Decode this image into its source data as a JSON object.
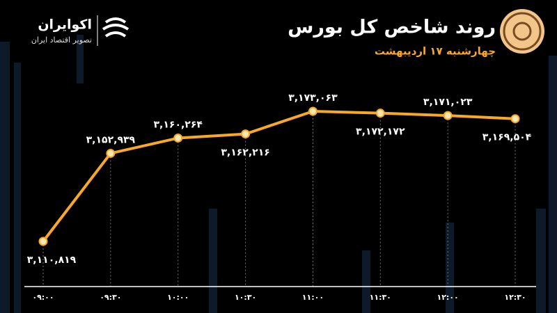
{
  "chart_data": {
    "type": "line",
    "title": "روند شاخص کل بورس",
    "subtitle": "چهارشنبه ۱۷ اردیبهشت",
    "brand": "اکوایران",
    "brand_tagline": "تصویر اقتصاد ایران",
    "categories": [
      "۰۹:۰۰",
      "۰۹:۳۰",
      "۱۰:۰۰",
      "۱۰:۳۰",
      "۱۱:۰۰",
      "۱۱:۳۰",
      "۱۲:۰۰",
      "۱۲:۳۰"
    ],
    "series": [
      {
        "name": "شاخص کل",
        "color": "#f7a829",
        "values": [
          3110819,
          3152939,
          3160264,
          3162216,
          3173063,
          3172172,
          3171023,
          3169504
        ],
        "value_labels": [
          "۳,۱۱۰,۸۱۹",
          "۳,۱۵۲,۹۳۹",
          "۳,۱۶۰,۲۶۴",
          "۳,۱۶۲,۲۱۶",
          "۳,۱۷۳,۰۶۳",
          "۳,۱۷۲,۱۷۲",
          "۳,۱۷۱,۰۲۳",
          "۳,۱۶۹,۵۰۴"
        ]
      }
    ]
  }
}
